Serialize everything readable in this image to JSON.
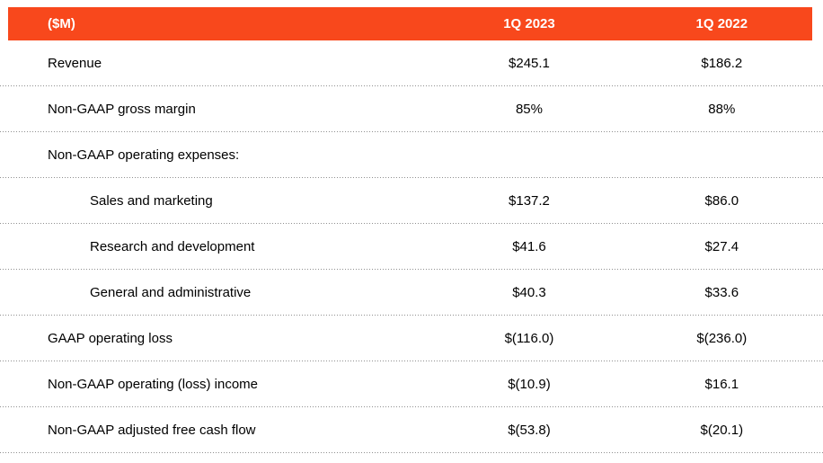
{
  "table": {
    "unit_label": "($M)",
    "columns": [
      "1Q 2023",
      "1Q 2022"
    ],
    "rows": [
      {
        "label": "Revenue",
        "q1_2023": "$245.1",
        "q1_2022": "$186.2",
        "indent": false
      },
      {
        "label": "Non-GAAP gross margin",
        "q1_2023": "85%",
        "q1_2022": "88%",
        "indent": false
      },
      {
        "label": "Non-GAAP operating expenses:",
        "q1_2023": "",
        "q1_2022": "",
        "indent": false
      },
      {
        "label": "Sales and marketing",
        "q1_2023": "$137.2",
        "q1_2022": "$86.0",
        "indent": true
      },
      {
        "label": "Research and development",
        "q1_2023": "$41.6",
        "q1_2022": "$27.4",
        "indent": true
      },
      {
        "label": "General and administrative",
        "q1_2023": "$40.3",
        "q1_2022": "$33.6",
        "indent": true
      },
      {
        "label": "GAAP operating loss",
        "q1_2023": "$(116.0)",
        "q1_2022": "$(236.0)",
        "indent": false
      },
      {
        "label": "Non-GAAP operating (loss) income",
        "q1_2023": "$(10.9)",
        "q1_2022": "$16.1",
        "indent": false
      },
      {
        "label": "Non-GAAP adjusted free cash flow",
        "q1_2023": "$(53.8)",
        "q1_2022": "$(20.1)",
        "indent": false
      }
    ],
    "colors": {
      "header_bg": "#F8481C",
      "header_text": "#FFFFFF",
      "body_text": "#000000",
      "separator": "#8F8F8F"
    }
  }
}
